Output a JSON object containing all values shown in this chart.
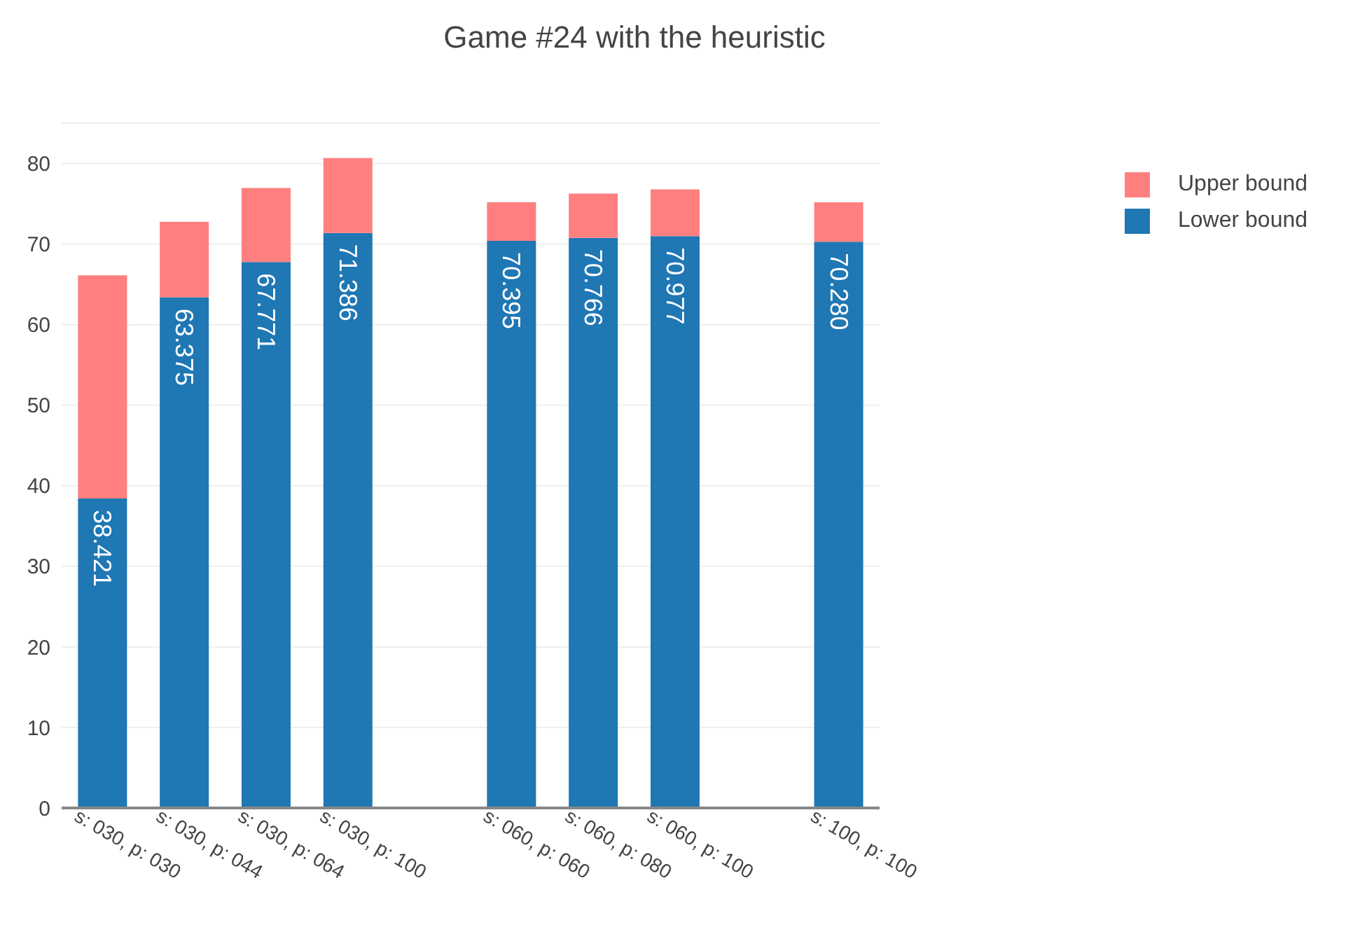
{
  "chart_data": {
    "type": "bar",
    "title": "Game #24 with the heuristic",
    "stacked": true,
    "categories": [
      "s: 030, p: 030",
      "s: 030, p: 044",
      "s: 030, p: 064",
      "s: 030, p: 100",
      null,
      "s: 060, p: 060",
      "s: 060, p: 080",
      "s: 060, p: 100",
      null,
      "s: 100, p: 100"
    ],
    "series": [
      {
        "name": "Lower bound",
        "color": "#1f77b4",
        "values": [
          38.421,
          63.375,
          67.771,
          71.386,
          null,
          70.395,
          70.766,
          70.977,
          null,
          70.28
        ],
        "value_labels": [
          "38.421",
          "63.375",
          "67.771",
          "71.386",
          null,
          "70.395",
          "70.766",
          "70.977",
          null,
          "70.280"
        ]
      },
      {
        "name": "Upper bound",
        "color": "#ff7f7f",
        "values": [
          27.7,
          9.4,
          9.2,
          9.3,
          null,
          4.8,
          5.5,
          5.8,
          null,
          4.9
        ]
      }
    ],
    "ylim": [
      0,
      85
    ],
    "yticks": [
      0,
      10,
      20,
      30,
      40,
      50,
      60,
      70,
      80
    ],
    "grid": "y",
    "legend": "top right"
  }
}
